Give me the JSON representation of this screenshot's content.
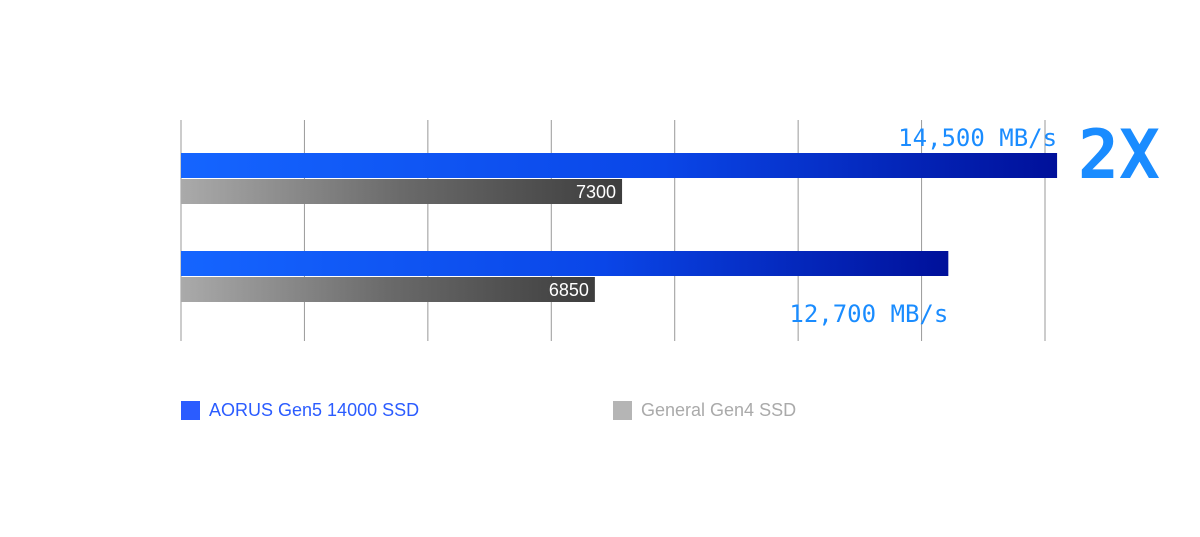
{
  "chart_data": {
    "type": "bar",
    "orientation": "horizontal",
    "categories": [
      "",
      ""
    ],
    "series": [
      {
        "name": "AORUS Gen5 14000 SSD",
        "values": [
          14500,
          12700
        ],
        "labels": [
          "14,500 MB/s",
          "12,700 MB/s"
        ],
        "color": "#1565ff"
      },
      {
        "name": "General Gen4 SSD",
        "values": [
          7300,
          6850
        ],
        "labels": [
          "7300",
          "6850"
        ],
        "color": "#555555"
      }
    ],
    "xlim": [
      0,
      14300
    ],
    "grid": true,
    "annotation": "2X",
    "legend_position": "bottom"
  },
  "colors": {
    "blue_start": "#1565ff",
    "blue_end": "#00109a",
    "gray_start": "#aaaaaa",
    "gray_end": "#3d3d3d",
    "accent_text": "#1a8cff",
    "grid": "#999999"
  }
}
